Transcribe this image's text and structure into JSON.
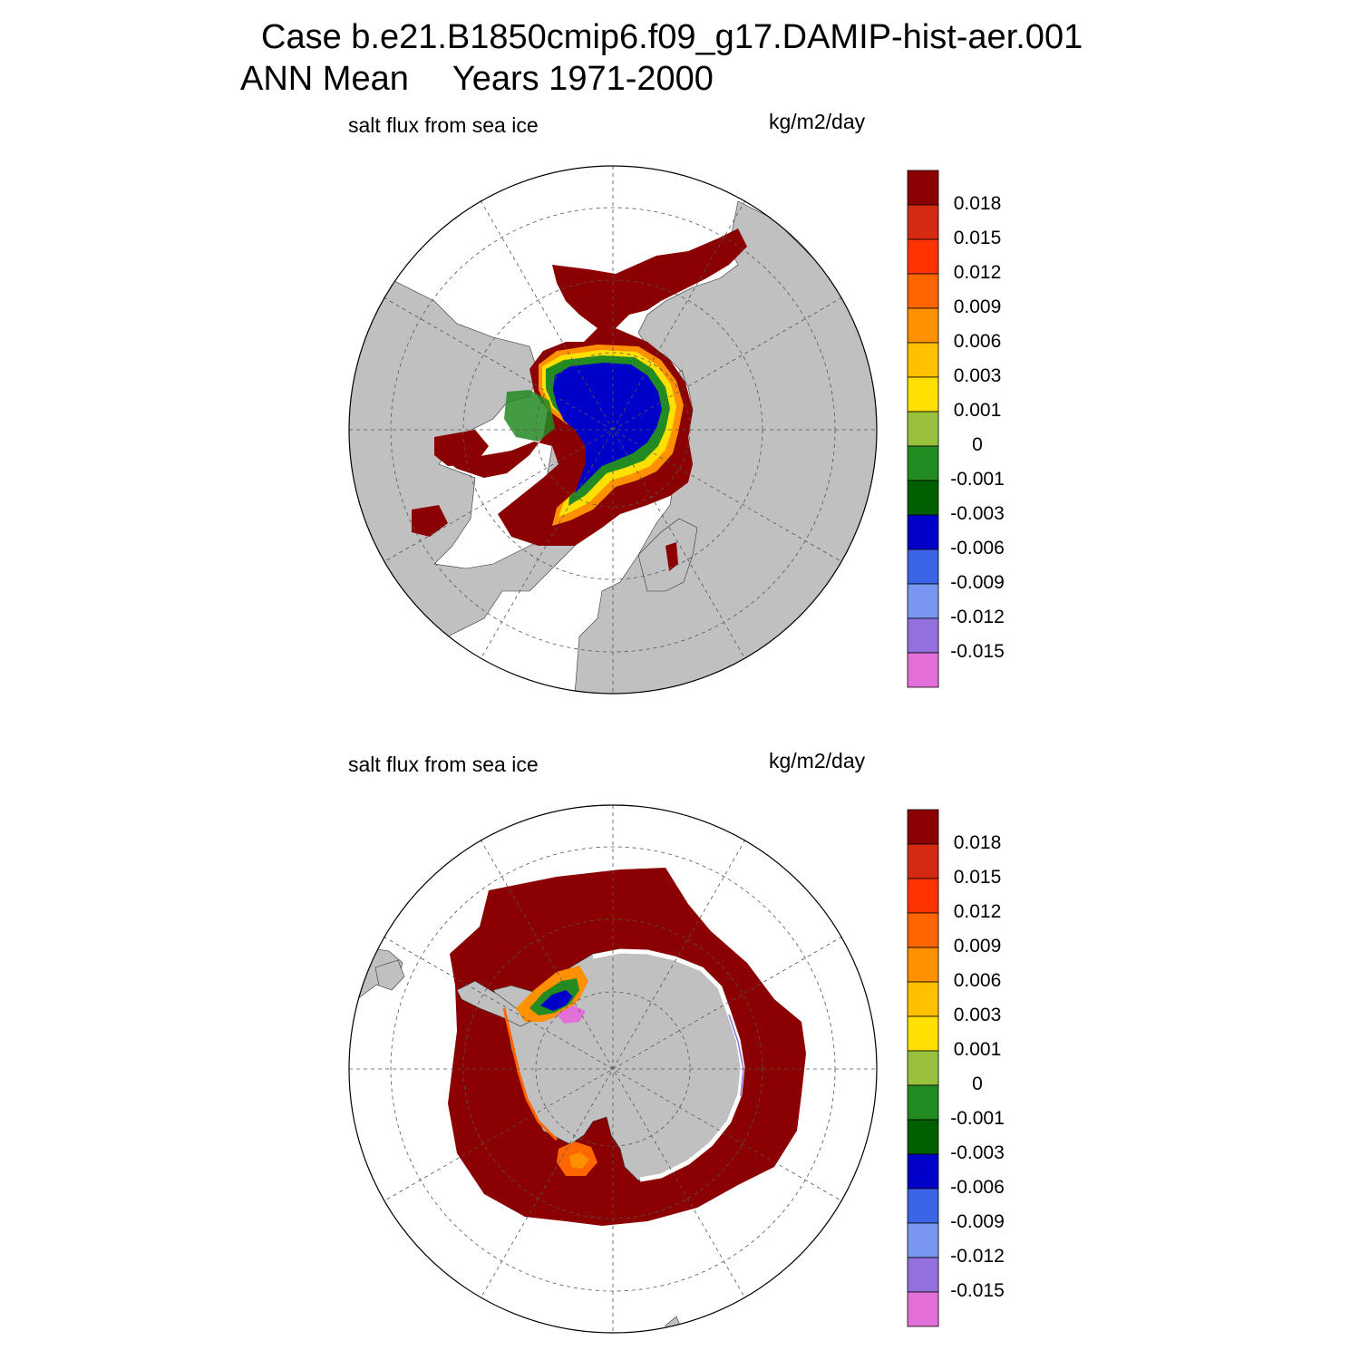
{
  "title": {
    "case_line": "Case b.e21.B1850cmip6.f09_g17.DAMIP-hist-aer.001",
    "period_label": "ANN Mean",
    "years_label": "Years 1971-2000"
  },
  "panels": [
    {
      "id": "north",
      "variable_label": "salt flux from sea ice",
      "units_label": "kg/m2/day",
      "hemisphere": "Arctic (North Polar Stereographic)"
    },
    {
      "id": "south",
      "variable_label": "salt flux from sea ice",
      "units_label": "kg/m2/day",
      "hemisphere": "Antarctic (South Polar Stereographic)"
    }
  ],
  "colorbar": {
    "labels": [
      "0.018",
      "0.015",
      "0.012",
      "0.009",
      "0.006",
      "0.003",
      "0.001",
      "0",
      "-0.001",
      "-0.003",
      "-0.006",
      "-0.009",
      "-0.012",
      "-0.015"
    ],
    "colors": [
      "#8b0000",
      "#d42a12",
      "#ff3300",
      "#ff6600",
      "#ff9000",
      "#ffc000",
      "#ffe000",
      "#9ac13b",
      "#228b22",
      "#005f00",
      "#0000c8",
      "#3c64e6",
      "#7898f0",
      "#9370db",
      "#e370d8"
    ]
  },
  "colors": {
    "land": "#c0c0c0",
    "ocean_missing": "#ffffff",
    "frame": "#000000"
  }
}
